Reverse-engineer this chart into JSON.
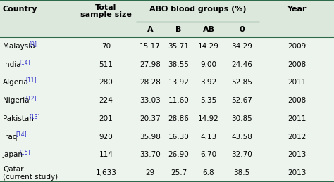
{
  "country_names": [
    "Malaysia",
    "India",
    "Algeria",
    "Nigeria",
    "Pakistan",
    "Iraq",
    "Japan",
    "Qatar"
  ],
  "superscripts": [
    "[9]",
    "[14]",
    "[11]",
    "[12]",
    "[13]",
    "[14]",
    "[15]",
    ""
  ],
  "extra_lines": [
    "",
    "",
    "",
    "",
    "",
    "",
    "",
    "(current study)"
  ],
  "total_sample": [
    "70",
    "511",
    "280",
    "224",
    "201",
    "920",
    "114",
    "1,633"
  ],
  "A_vals": [
    "15.17",
    "27.98",
    "28.28",
    "33.03",
    "20.37",
    "35.98",
    "33.70",
    "29"
  ],
  "B_vals": [
    "35.71",
    "38.55",
    "13.92",
    "11.60",
    "28.86",
    "16.30",
    "26.90",
    "25.7"
  ],
  "AB_vals": [
    "14.29",
    "9.00",
    "3.92",
    "5.35",
    "14.92",
    "4.13",
    "6.70",
    "6.8"
  ],
  "O_vals": [
    "34.29",
    "24.46",
    "52.85",
    "52.67",
    "30.85",
    "43.58",
    "32.70",
    "38.5"
  ],
  "year_vals": [
    "2009",
    "2008",
    "2011",
    "2008",
    "2011",
    "2012",
    "2013",
    "2013"
  ],
  "bg_header": "#dce8dc",
  "bg_data": "#edf4ed",
  "text_color": "#000000",
  "link_color": "#3333cc",
  "border_color": "#2d6b4a",
  "font_size": 7.5,
  "header_font_size": 8.0
}
